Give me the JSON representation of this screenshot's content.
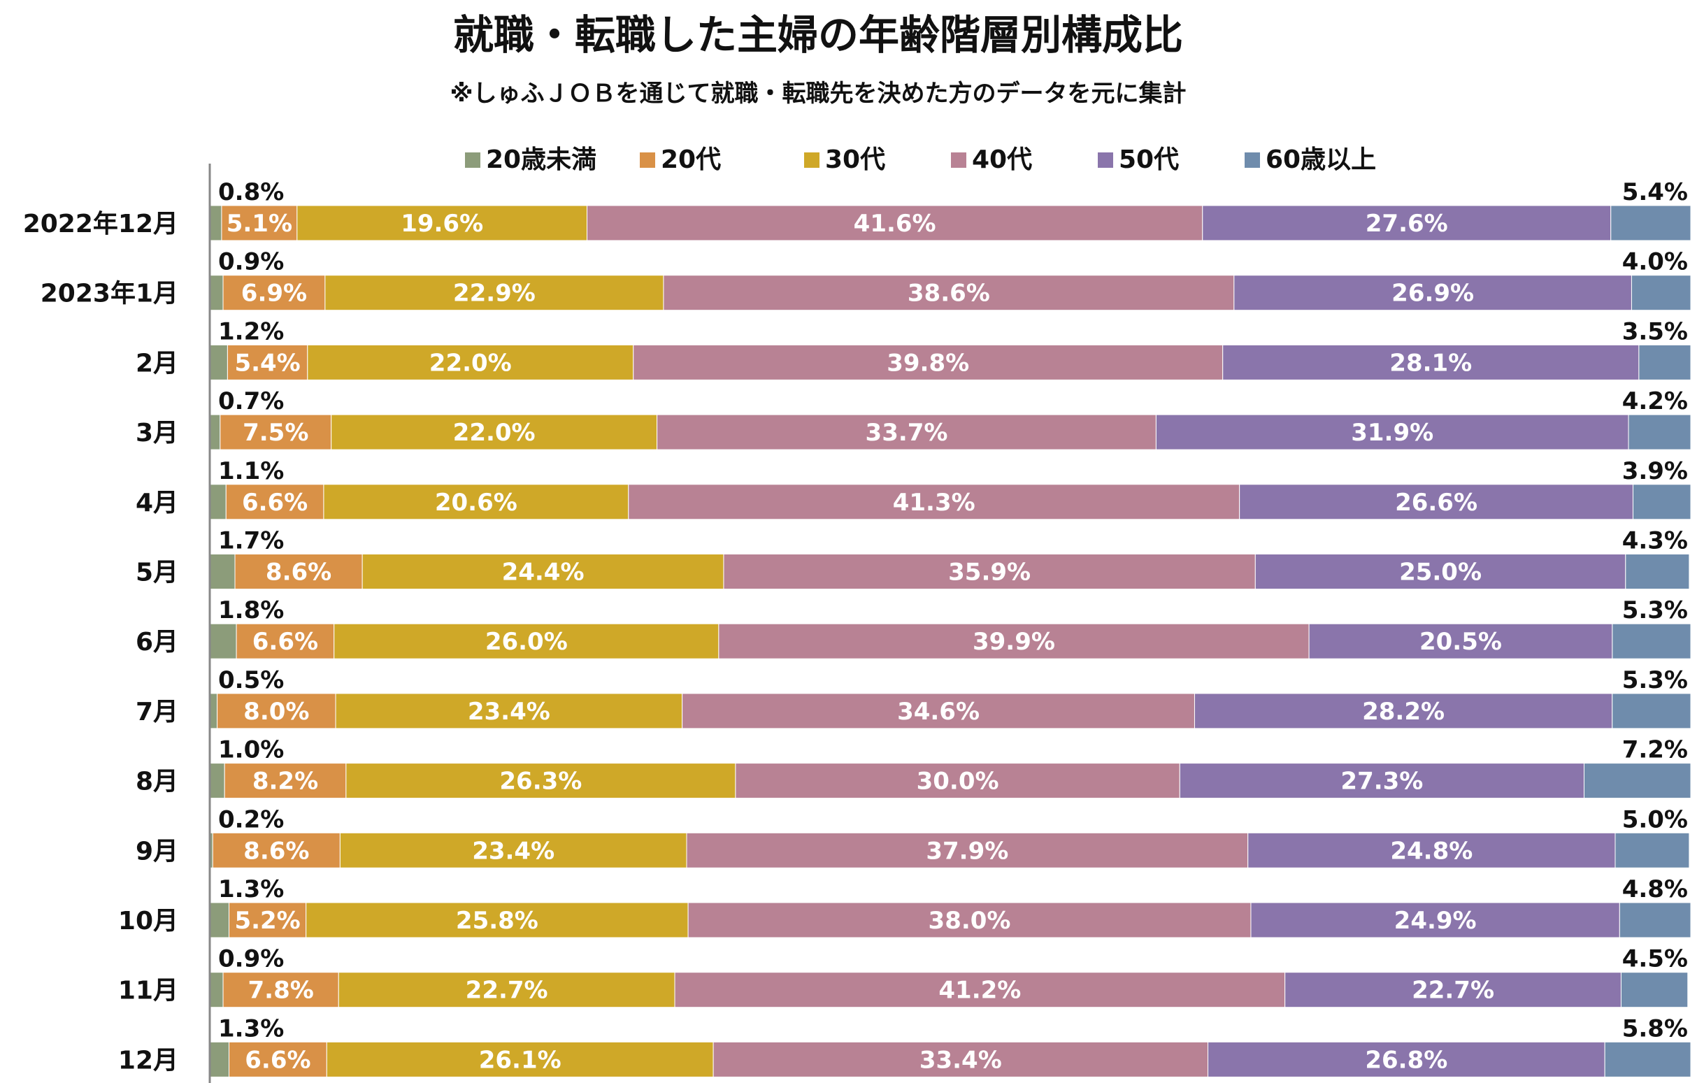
{
  "chart_data": {
    "type": "bar",
    "orientation": "horizontal",
    "stacked": "percent",
    "title": "就職・転職した主婦の年齢階層別構成比",
    "subtitle": "※しゅふＪＯＢを通じて就職・転職先を決めた方のデータを元に集計",
    "legend_position": "top",
    "grid": false,
    "xlim": [
      0,
      100
    ],
    "categories": [
      "2022年12月",
      "2023年1月",
      "2月",
      "3月",
      "4月",
      "5月",
      "6月",
      "7月",
      "8月",
      "9月",
      "10月",
      "11月",
      "12月"
    ],
    "series": [
      {
        "name": "20歳未満",
        "color": "#8c9c7a",
        "label_position": "above-left",
        "values": [
          0.8,
          0.9,
          1.2,
          0.7,
          1.1,
          1.7,
          1.8,
          0.5,
          1.0,
          0.2,
          1.3,
          0.9,
          1.3
        ],
        "labels": [
          "0.8%",
          "0.9%",
          "1.2%",
          "0.7%",
          "1.1%",
          "1.7%",
          "1.8%",
          "0.5%",
          "1.0%",
          "0.2%",
          "1.3%",
          "0.9%",
          "1.3%"
        ]
      },
      {
        "name": "20代",
        "color": "#d99147",
        "label_position": "inside",
        "values": [
          5.1,
          6.9,
          5.4,
          7.5,
          6.6,
          8.6,
          6.6,
          8.0,
          8.2,
          8.6,
          5.2,
          7.8,
          6.6
        ],
        "labels": [
          "5.1%",
          "6.9%",
          "5.4%",
          "7.5%",
          "6.6%",
          "8.6%",
          "6.6%",
          "8.0%",
          "8.2%",
          "8.6%",
          "5.2%",
          "7.8%",
          "6.6%"
        ]
      },
      {
        "name": "30代",
        "color": "#cfa828",
        "label_position": "inside",
        "values": [
          19.6,
          22.9,
          22.0,
          22.0,
          20.6,
          24.4,
          26.0,
          23.4,
          26.3,
          23.4,
          25.8,
          22.7,
          26.1
        ],
        "labels": [
          "19.6%",
          "22.9%",
          "22.0%",
          "22.0%",
          "20.6%",
          "24.4%",
          "26.0%",
          "23.4%",
          "26.3%",
          "23.4%",
          "25.8%",
          "22.7%",
          "26.1%"
        ]
      },
      {
        "name": "40代",
        "color": "#b88294",
        "label_position": "inside",
        "values": [
          41.6,
          38.6,
          39.8,
          33.7,
          41.3,
          35.9,
          39.9,
          34.6,
          30.0,
          37.9,
          38.0,
          41.2,
          33.4
        ],
        "labels": [
          "41.6%",
          "38.6%",
          "39.8%",
          "33.7%",
          "41.3%",
          "35.9%",
          "39.9%",
          "34.6%",
          "30.0%",
          "37.9%",
          "38.0%",
          "41.2%",
          "33.4%"
        ]
      },
      {
        "name": "50代",
        "color": "#8a75ab",
        "label_position": "inside",
        "values": [
          27.6,
          26.9,
          28.1,
          31.9,
          26.6,
          25.0,
          20.5,
          28.2,
          27.3,
          24.8,
          24.9,
          22.7,
          26.8
        ],
        "labels": [
          "27.6%",
          "26.9%",
          "28.1%",
          "31.9%",
          "26.6%",
          "25.0%",
          "20.5%",
          "28.2%",
          "27.3%",
          "24.8%",
          "24.9%",
          "22.7%",
          "26.8%"
        ]
      },
      {
        "name": "60歳以上",
        "color": "#6f8cac",
        "label_position": "above-right",
        "values": [
          5.4,
          4.0,
          3.5,
          4.2,
          3.9,
          4.3,
          5.3,
          5.3,
          7.2,
          5.0,
          4.8,
          4.5,
          5.8
        ],
        "labels": [
          "5.4%",
          "4.0%",
          "3.5%",
          "4.2%",
          "3.9%",
          "4.3%",
          "5.3%",
          "5.3%",
          "7.2%",
          "5.0%",
          "4.8%",
          "4.5%",
          "5.8%"
        ]
      }
    ]
  }
}
